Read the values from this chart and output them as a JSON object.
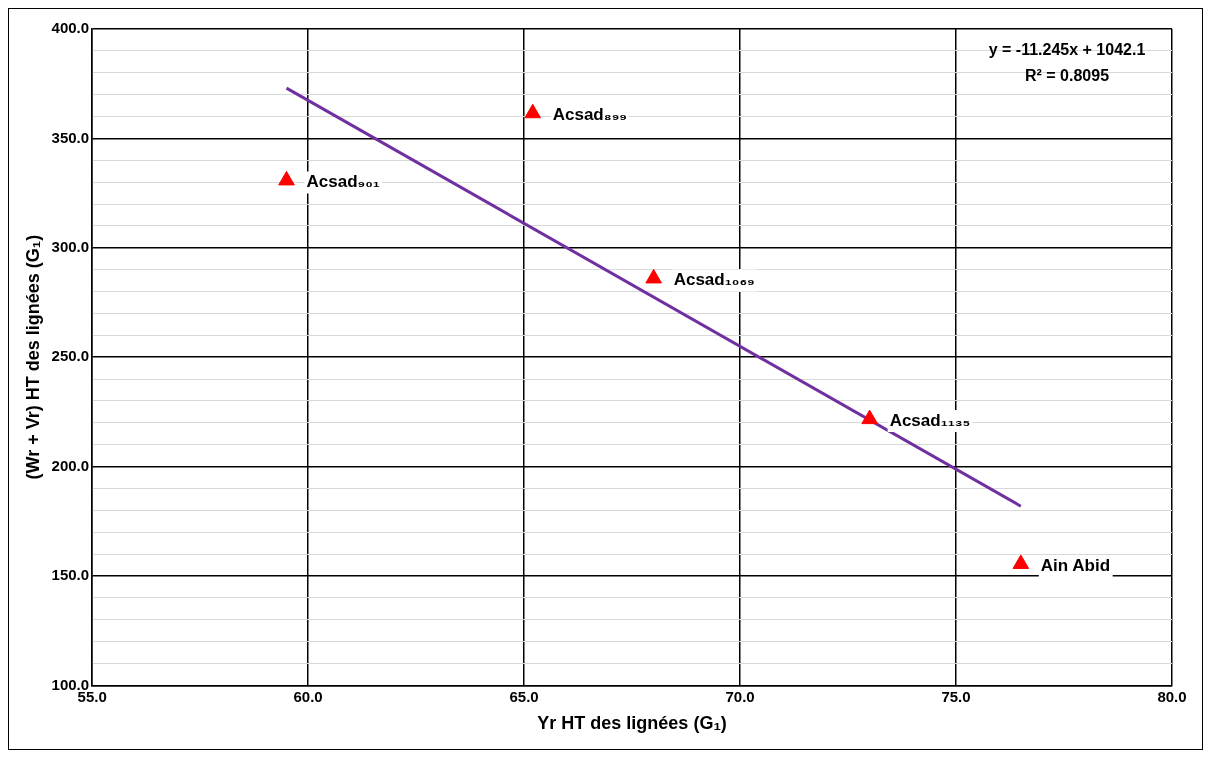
{
  "chart_data": {
    "type": "scatter",
    "xlabel": "Yr HT des lignées (G₁)",
    "ylabel": "(Wr + Vr) HT des lignées (G₁)",
    "xlim": [
      55,
      80
    ],
    "ylim": [
      100,
      400
    ],
    "xticks": [
      {
        "value": 55,
        "label": "55.0"
      },
      {
        "value": 60,
        "label": "60.0"
      },
      {
        "value": 65,
        "label": "65.0"
      },
      {
        "value": 70,
        "label": "70.0"
      },
      {
        "value": 75,
        "label": "75.0"
      },
      {
        "value": 80,
        "label": "80.0"
      }
    ],
    "yticks": [
      {
        "value": 100,
        "label": "100.0"
      },
      {
        "value": 110,
        "label": null
      },
      {
        "value": 120,
        "label": null
      },
      {
        "value": 130,
        "label": null
      },
      {
        "value": 140,
        "label": null
      },
      {
        "value": 150,
        "label": "150.0"
      },
      {
        "value": 160,
        "label": null
      },
      {
        "value": 170,
        "label": null
      },
      {
        "value": 180,
        "label": null
      },
      {
        "value": 190,
        "label": null
      },
      {
        "value": 200,
        "label": "200.0"
      },
      {
        "value": 210,
        "label": null
      },
      {
        "value": 220,
        "label": null
      },
      {
        "value": 230,
        "label": null
      },
      {
        "value": 240,
        "label": null
      },
      {
        "value": 250,
        "label": "250.0"
      },
      {
        "value": 260,
        "label": null
      },
      {
        "value": 270,
        "label": null
      },
      {
        "value": 280,
        "label": null
      },
      {
        "value": 290,
        "label": null
      },
      {
        "value": 300,
        "label": "300.0"
      },
      {
        "value": 310,
        "label": null
      },
      {
        "value": 320,
        "label": null
      },
      {
        "value": 330,
        "label": null
      },
      {
        "value": 340,
        "label": null
      },
      {
        "value": 350,
        "label": "350.0"
      },
      {
        "value": 360,
        "label": null
      },
      {
        "value": 370,
        "label": null
      },
      {
        "value": 380,
        "label": null
      },
      {
        "value": 390,
        "label": null
      },
      {
        "value": 400,
        "label": "400.0"
      }
    ],
    "grid": true,
    "marker": "triangle",
    "series": [
      {
        "color": "#ff0000",
        "x": [
          59.5,
          65.2,
          68.0,
          73.0,
          76.5
        ],
        "values": [
          330.8,
          361.5,
          286.0,
          221.7,
          155.5
        ]
      },
      {
        "type": "line",
        "color": "#7030a0",
        "marker": "none",
        "x": [
          59.5,
          76.5
        ],
        "values": [
          373.0,
          181.9
        ]
      }
    ],
    "annotations": [
      {
        "text": "Acsad₉₀₁",
        "x": 59.5,
        "y": 330.8
      },
      {
        "text": "Acsad₈₉₉",
        "x": 65.2,
        "y": 361.5
      },
      {
        "text": "Acsad₁₀₆₉",
        "x": 68.0,
        "y": 286.0
      },
      {
        "text": "Acsad₁₁₃₅",
        "x": 73.0,
        "y": 221.7
      },
      {
        "text": "Ain Abid",
        "x": 76.5,
        "y": 155.5
      },
      "y = -11.245x + 1042.1",
      "R² = 0.8095"
    ]
  }
}
